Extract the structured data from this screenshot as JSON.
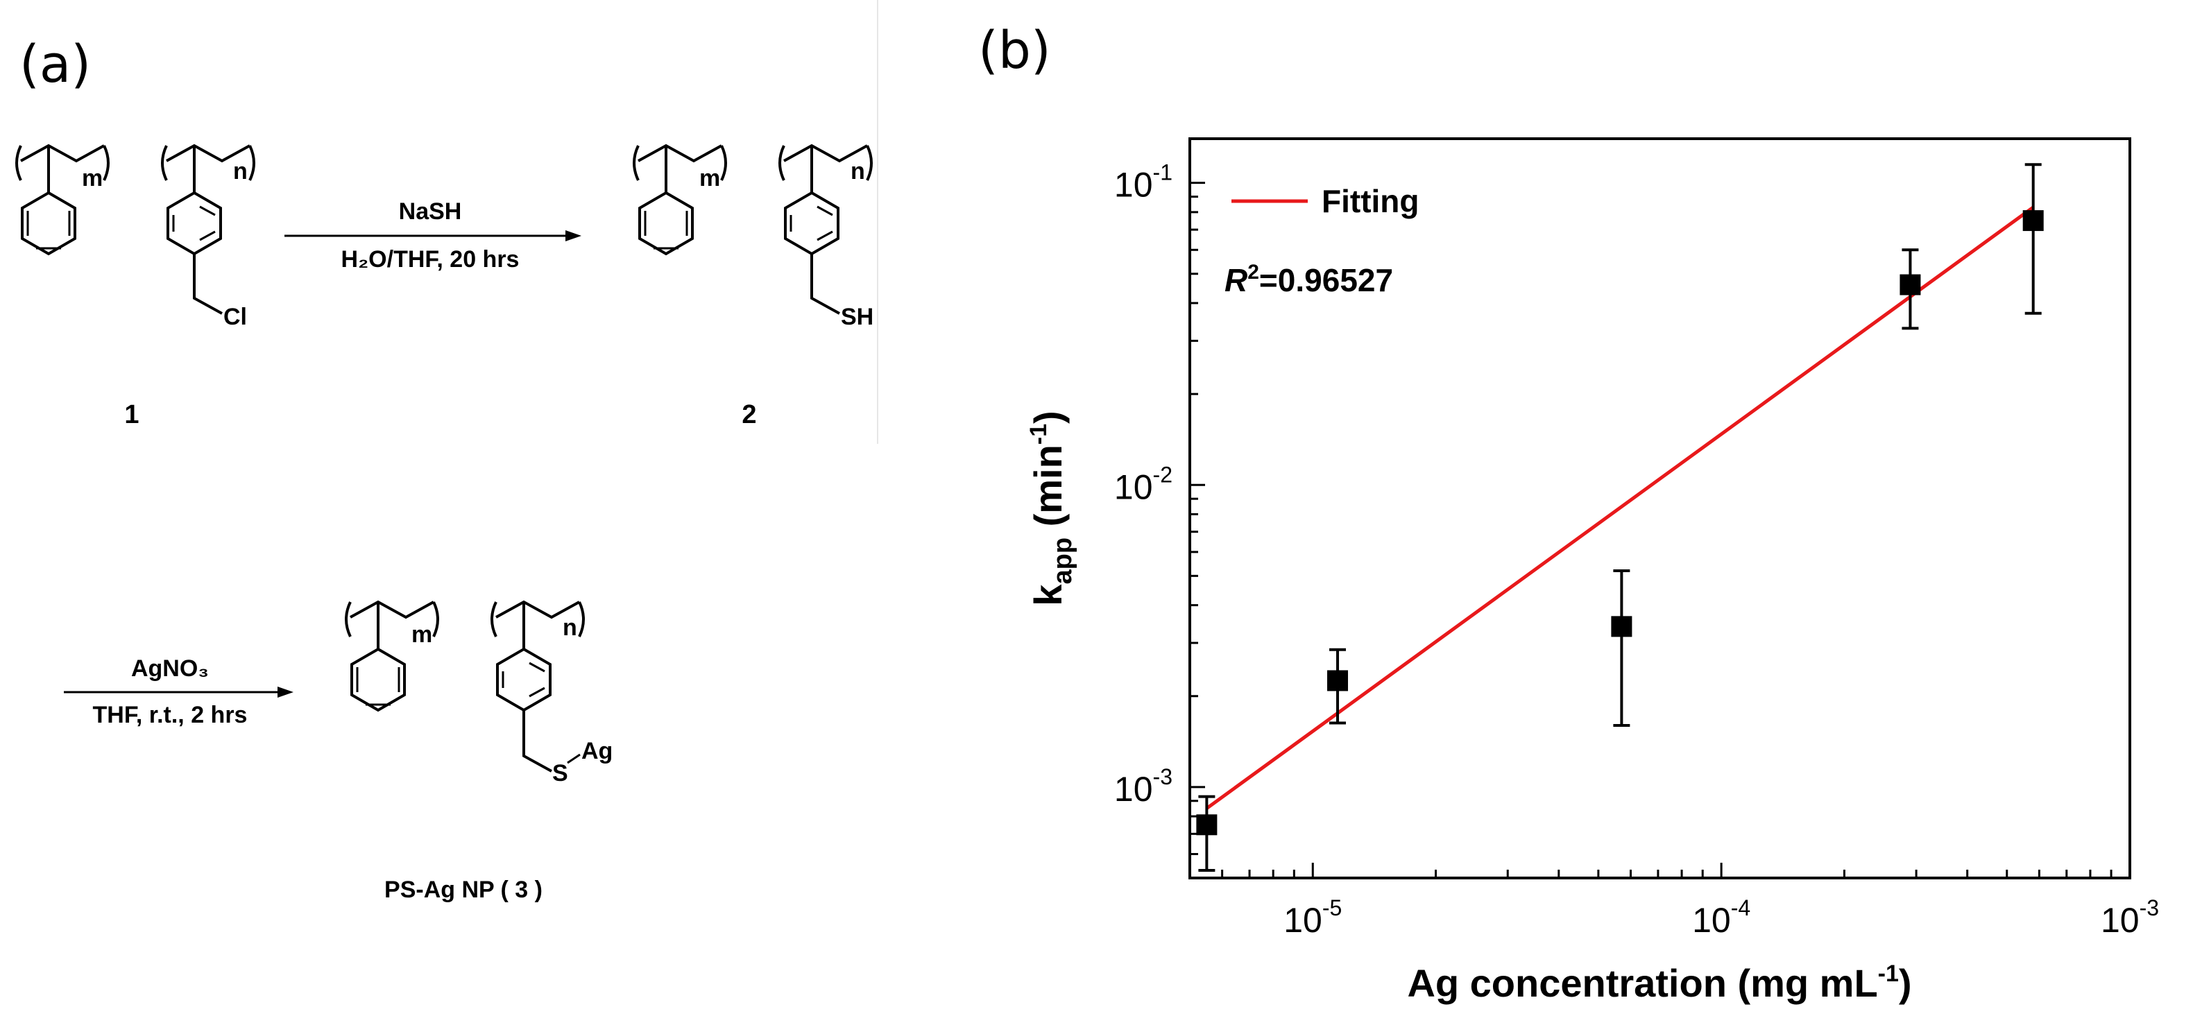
{
  "panel_a": {
    "label": "(a)",
    "compound1_number": "1",
    "compound2_number": "2",
    "compound3_name": "PS-Ag NP ( 3 )",
    "repeat_m": "m",
    "repeat_n": "n",
    "substituent_cl": "Cl",
    "substituent_sh": "SH",
    "substituent_s": "S",
    "substituent_ag": "Ag",
    "reaction1": {
      "reagent": "NaSH",
      "conditions": "H₂O/THF, 20 hrs"
    },
    "reaction2": {
      "reagent": "AgNO₃",
      "conditions": "THF, r.t., 2 hrs"
    }
  },
  "panel_b": {
    "label": "(b)"
  },
  "chart_data": {
    "type": "scatter",
    "x_scale": "log",
    "y_scale": "log",
    "xlim": [
      5e-06,
      0.001
    ],
    "ylim": [
      0.0005,
      0.14
    ],
    "xlabel": "Ag  concentration (mg mL",
    "xlabel_sup": "-1",
    "xlabel_end": ")",
    "ylabel_main": "k",
    "ylabel_sub": "app",
    "ylabel_rest": " (min",
    "ylabel_sup": "-1",
    "ylabel_end": ")",
    "x_ticks": [
      {
        "value": 1e-05,
        "base": "10",
        "exp": "-5"
      },
      {
        "value": 0.0001,
        "base": "10",
        "exp": "-4"
      },
      {
        "value": 0.001,
        "base": "10",
        "exp": "-3"
      }
    ],
    "y_ticks": [
      {
        "value": 0.001,
        "base": "10",
        "exp": "-3"
      },
      {
        "value": 0.01,
        "base": "10",
        "exp": "-2"
      },
      {
        "value": 0.1,
        "base": "10",
        "exp": "-1"
      }
    ],
    "series": [
      {
        "points": [
          {
            "x": 5.5e-06,
            "y": 0.00075,
            "err_low": 0.00053,
            "err_high": 0.00093
          },
          {
            "x": 1.15e-05,
            "y": 0.00225,
            "err_low": 0.00163,
            "err_high": 0.00285
          },
          {
            "x": 5.7e-05,
            "y": 0.0034,
            "err_low": 0.0016,
            "err_high": 0.0052
          },
          {
            "x": 0.00029,
            "y": 0.046,
            "err_low": 0.033,
            "err_high": 0.06
          },
          {
            "x": 0.00058,
            "y": 0.075,
            "err_low": 0.037,
            "err_high": 0.115
          }
        ],
        "color": "#000000"
      },
      {
        "name": "Fitting",
        "type": "line",
        "color": "#e8191b",
        "x": [
          5.5e-06,
          0.00058
        ],
        "y": [
          0.00085,
          0.083
        ]
      }
    ],
    "legend_label": "Fitting",
    "annotation": {
      "prefix": "R",
      "sup": "2",
      "text": "=0.96527"
    },
    "legend_position": "top-left",
    "grid": false
  }
}
